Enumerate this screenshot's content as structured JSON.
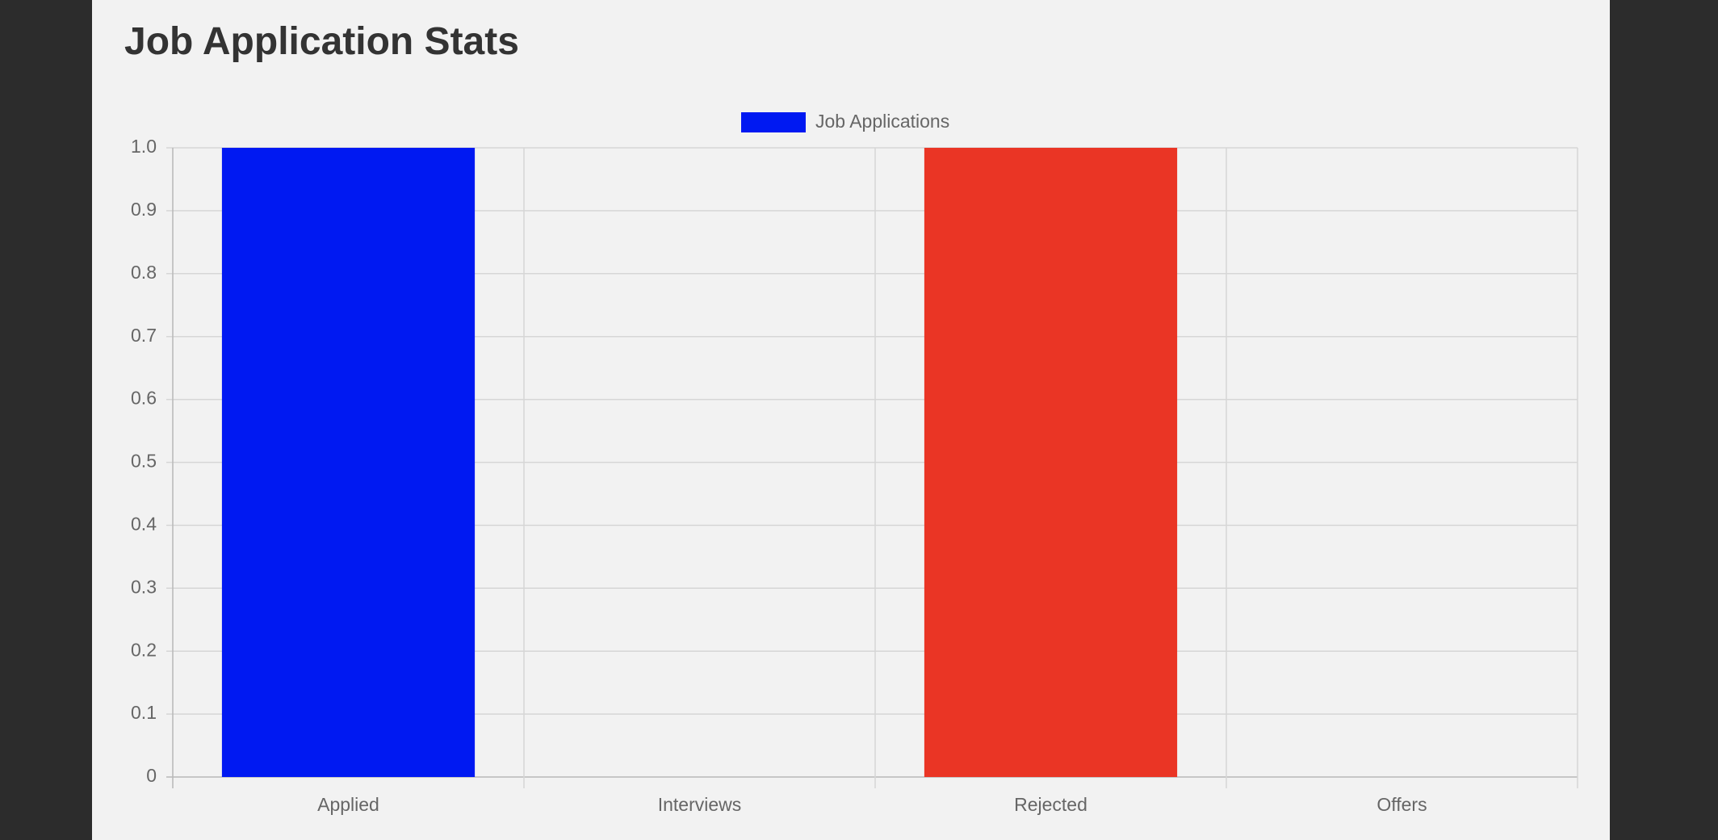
{
  "page": {
    "title": "Job Application Stats"
  },
  "colors": {
    "outer_background": "#2c2c2c",
    "page_background": "#f2f2f2",
    "grid": "#d6d6d6",
    "axis": "#b8b8b8",
    "tick_text": "#666666",
    "title_text": "#333333"
  },
  "chart_data": {
    "type": "bar",
    "title": "",
    "xlabel": "",
    "ylabel": "",
    "categories": [
      "Applied",
      "Interviews",
      "Rejected",
      "Offers"
    ],
    "series": [
      {
        "name": "Job Applications",
        "values": [
          1,
          0,
          1,
          0
        ],
        "colors": [
          "#0019f2",
          "#0019f2",
          "#ea3525",
          "#0019f2"
        ],
        "legend_color": "#0019f2"
      }
    ],
    "ylim": [
      0,
      1
    ],
    "yticks": [
      "0",
      "0.1",
      "0.2",
      "0.3",
      "0.4",
      "0.5",
      "0.6",
      "0.7",
      "0.8",
      "0.9",
      "1.0"
    ],
    "grid": true,
    "legend_position": "top-center"
  }
}
